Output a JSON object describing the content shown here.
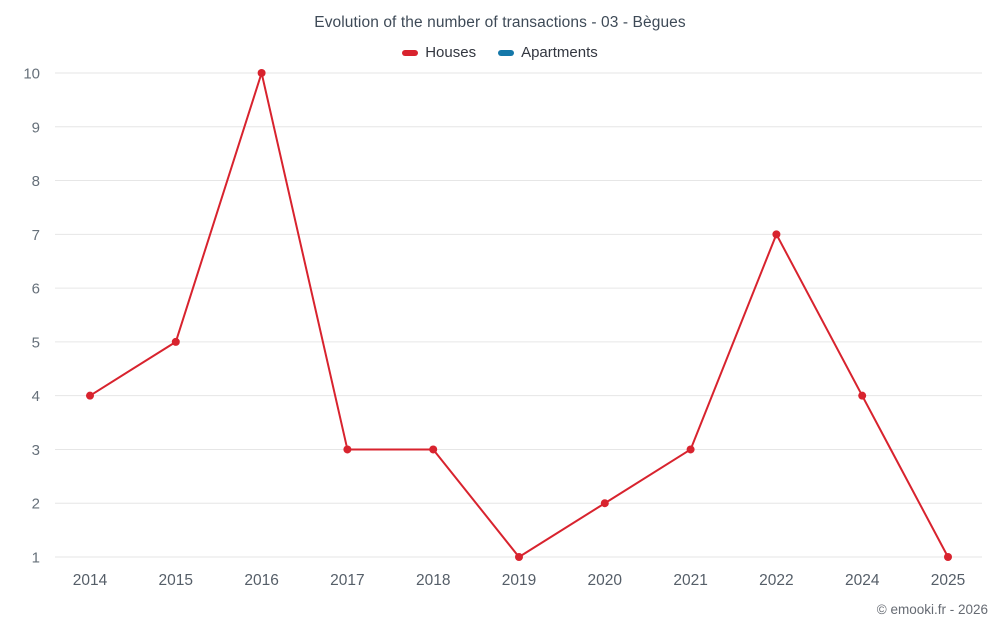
{
  "chart": {
    "title": "Evolution of the number of transactions - 03 - Bègues",
    "footer": "© emooki.fr - 2026"
  },
  "chart_data": {
    "type": "line",
    "title": "Evolution of the number of transactions - 03 - Bègues",
    "categories": [
      "2014",
      "2015",
      "2016",
      "2017",
      "2018",
      "2019",
      "2020",
      "2021",
      "2022",
      "2024",
      "2025"
    ],
    "series": [
      {
        "name": "Houses",
        "color": "#d8232e",
        "values": [
          4,
          5,
          10,
          3,
          3,
          1,
          2,
          3,
          7,
          4,
          1
        ]
      },
      {
        "name": "Apartments",
        "color": "#1578a9",
        "values": []
      }
    ],
    "xlabel": "",
    "ylabel": "",
    "ylim": [
      1,
      10
    ],
    "yticks": [
      1,
      2,
      3,
      4,
      5,
      6,
      7,
      8,
      9,
      10
    ],
    "grid": "horizontal",
    "gridline_color": "#e6e6e6",
    "legend_position": "top",
    "marker_radius": 4,
    "annotation": "© emooki.fr - 2026"
  }
}
